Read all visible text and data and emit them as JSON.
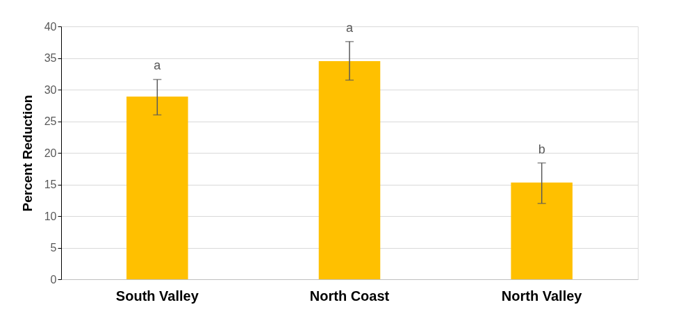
{
  "chart_data": {
    "type": "bar",
    "ylabel": "Percent Reduction",
    "categories": [
      "South Valley",
      "North Coast",
      "North Valley"
    ],
    "series": [
      {
        "color": "#ffc000",
        "values": [
          28.9,
          34.5,
          15.3
        ],
        "errors": [
          [
            26.0,
            31.6
          ],
          [
            31.5,
            37.6
          ],
          [
            12.0,
            18.4
          ]
        ]
      }
    ],
    "ylim": [
      0,
      40
    ],
    "yticks": [
      0,
      5,
      10,
      15,
      20,
      25,
      30,
      35,
      40
    ],
    "grid": "y",
    "annotations": [
      "a",
      "a",
      "b"
    ]
  }
}
